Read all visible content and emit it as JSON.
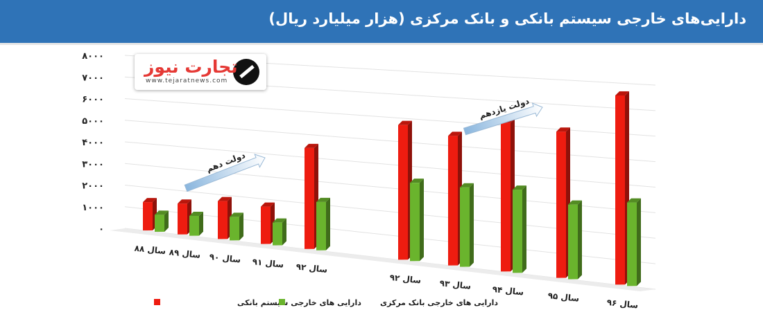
{
  "header": {
    "title": "دارایی‌های خارجی سیستم بانکی و بانک مرکزی (هزار میلیارد ریال)",
    "background": "#2f73b7"
  },
  "logo": {
    "name": "تجارت نیوز",
    "url": "www.tejaratnews.com"
  },
  "annotations": {
    "arrow1": "دولت دهم",
    "arrow2": "دولت یازدهم"
  },
  "chart_data": {
    "type": "bar",
    "title": "دارایی‌های خارجی سیستم بانکی و بانک مرکزی (هزار میلیارد ریال)",
    "ylim": [
      0,
      8000
    ],
    "y_ticks": [
      "۰",
      "۱۰۰۰",
      "۲۰۰۰",
      "۳۰۰۰",
      "۴۰۰۰",
      "۵۰۰۰",
      "۶۰۰۰",
      "۷۰۰۰",
      "۸۰۰۰"
    ],
    "groups": [
      {
        "name": "left",
        "categories": [
          "سال ۸۸",
          "سال ۸۹",
          "سال ۹۰",
          "سال ۹۱",
          "سال ۹۲"
        ]
      },
      {
        "name": "right",
        "categories": [
          "سال ۹۲",
          "سال ۹۳",
          "سال ۹۴",
          "سال ۹۵",
          "سال ۹۶"
        ]
      }
    ],
    "series": [
      {
        "name": "دارایی های خارجی سیستم بانکی",
        "color": "#ee1c10",
        "values": [
          1300,
          1400,
          1700,
          1650,
          4400,
          5700,
          5400,
          6100,
          5900,
          7500
        ]
      },
      {
        "name": "دارایی های خارجی بانک مرکزی",
        "color": "#6ab42d",
        "values": [
          780,
          900,
          1050,
          1000,
          2100,
          3300,
          3300,
          3400,
          3000,
          3300
        ]
      }
    ],
    "grid": true,
    "legend_position": "bottom"
  }
}
